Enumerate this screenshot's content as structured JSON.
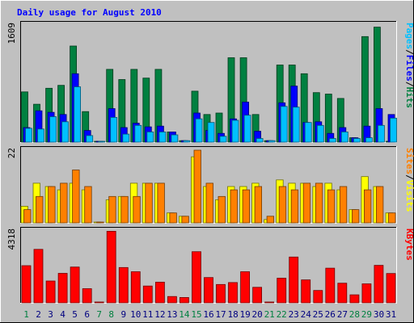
{
  "chart_data": {
    "type": "bar",
    "title": "Daily usage for August 2010",
    "categories": [
      "1",
      "2",
      "3",
      "4",
      "5",
      "6",
      "7",
      "8",
      "9",
      "10",
      "11",
      "12",
      "13",
      "14",
      "15",
      "16",
      "17",
      "18",
      "19",
      "20",
      "21",
      "22",
      "23",
      "24",
      "25",
      "26",
      "27",
      "28",
      "29",
      "30",
      "31"
    ],
    "weekend_days": [
      "1",
      "7",
      "8",
      "14",
      "15",
      "21",
      "22",
      "28",
      "29"
    ],
    "panels": [
      {
        "id": "hits",
        "max_label": "1609",
        "ylim": [
          0,
          1609
        ],
        "legend": [
          "Pages",
          "Files",
          "Hits"
        ],
        "series": [
          {
            "name": "Hits",
            "color": "#008040",
            "values": [
              690,
              520,
              740,
              780,
              1320,
              420,
              0,
              1000,
              860,
              1000,
              880,
              1000,
              140,
              20,
              700,
              380,
              400,
              1160,
              1160,
              380,
              20,
              1060,
              1060,
              940,
              680,
              660,
              600,
              60,
              1450,
              1580,
              0
            ]
          },
          {
            "name": "Files",
            "color": "#0000ff",
            "values": [
              200,
              430,
              410,
              380,
              940,
              160,
              0,
              460,
              200,
              260,
              210,
              220,
              140,
              20,
              400,
              160,
              120,
              320,
              550,
              150,
              20,
              540,
              770,
              270,
              280,
              120,
              200,
              60,
              220,
              460,
              380
            ]
          },
          {
            "name": "Pages",
            "color": "#00c0ff",
            "values": [
              190,
              180,
              350,
              280,
              760,
              90,
              0,
              340,
              110,
              230,
              140,
              140,
              100,
              20,
              320,
              270,
              80,
              300,
              370,
              50,
              20,
              490,
              480,
              270,
              230,
              50,
              140,
              50,
              60,
              230,
              330
            ]
          }
        ]
      },
      {
        "id": "visits",
        "max_label": "22",
        "ylim": [
          0,
          22
        ],
        "legend": [
          "Sites",
          "Visits"
        ],
        "series": [
          {
            "name": "Visits",
            "color": "#ffff00",
            "values": [
              5,
              12,
              11,
              10,
              12,
              10,
              0,
              7,
              8,
              12,
              12,
              12,
              3,
              2,
              20,
              11,
              7,
              11,
              11,
              12,
              1,
              13,
              12,
              12,
              11,
              12,
              10,
              4,
              14,
              11,
              3
            ]
          },
          {
            "name": "Sites",
            "color": "#ff8000",
            "values": [
              4,
              8,
              11,
              12,
              16,
              11,
              0,
              8,
              8,
              8,
              12,
              12,
              3,
              2,
              22,
              12,
              8,
              10,
              10,
              11,
              2,
              11,
              10,
              12,
              12,
              10,
              11,
              4,
              10,
              11,
              3
            ]
          }
        ]
      },
      {
        "id": "kbytes",
        "max_label": "4318",
        "ylim": [
          0,
          4318
        ],
        "legend": [
          "KBytes"
        ],
        "series": [
          {
            "name": "KBytes",
            "color": "#ff0000",
            "values": [
              2230,
              3210,
              1310,
              1770,
              2150,
              850,
              0,
              4300,
              2120,
              1870,
              1010,
              1240,
              380,
              320,
              3070,
              1520,
              1100,
              1220,
              1870,
              930,
              30,
              1480,
              2750,
              1380,
              740,
              2080,
              1180,
              480,
              1140,
              2250,
              1760
            ]
          }
        ]
      }
    ]
  }
}
